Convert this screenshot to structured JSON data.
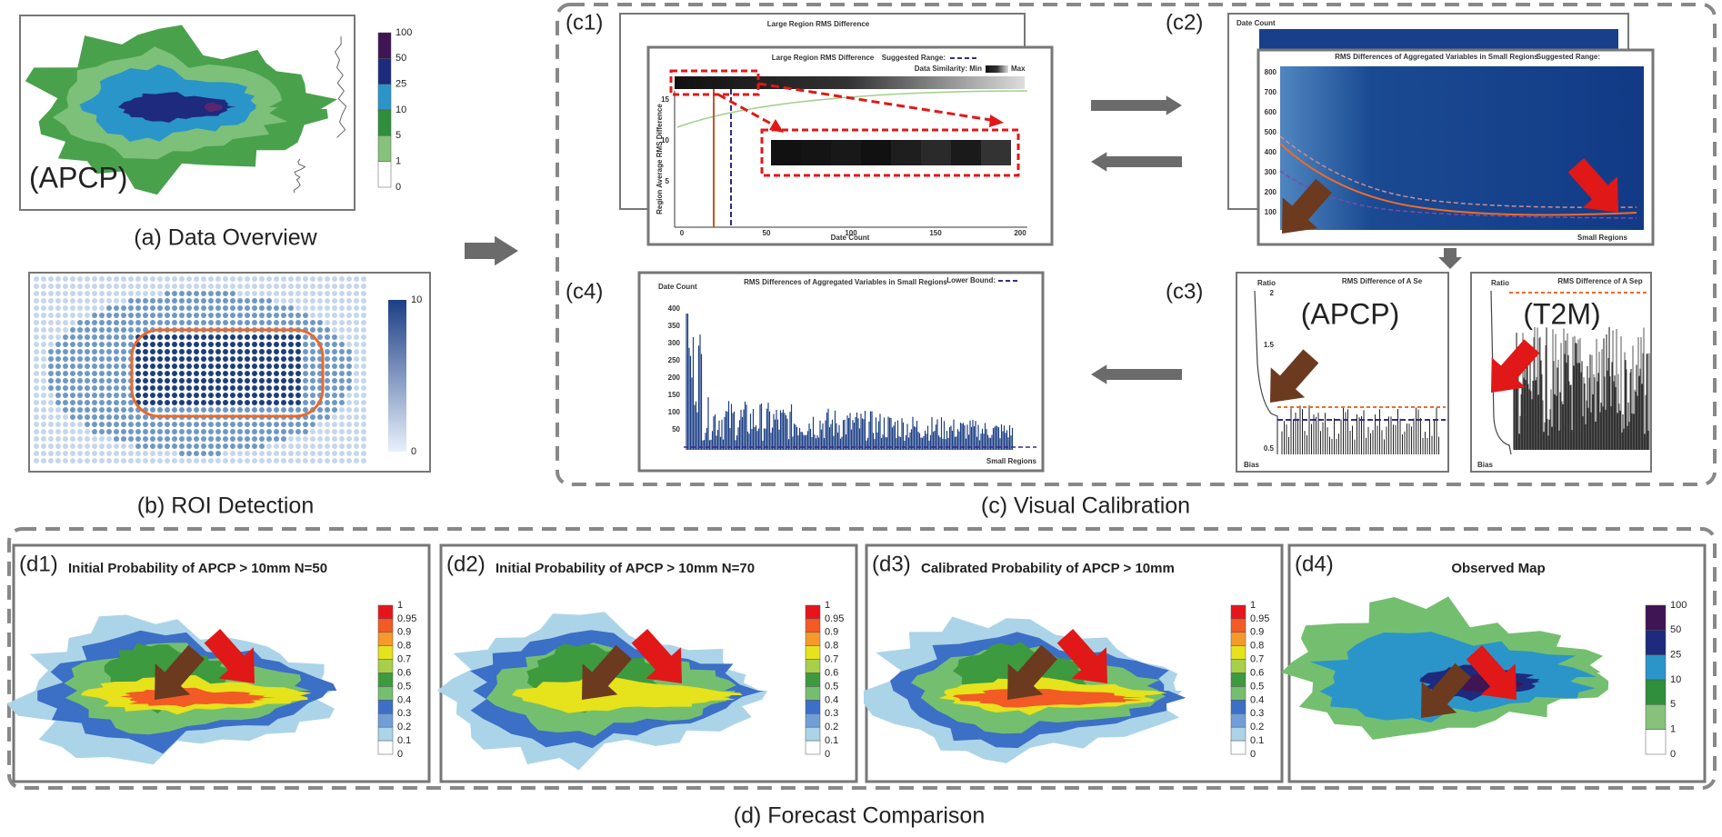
{
  "a": {
    "map_label": "(APCP)",
    "legend": [
      "100",
      "50",
      "25",
      "10",
      "5",
      "1",
      "0"
    ],
    "caption": "(a) Data Overview"
  },
  "b": {
    "legend": [
      "10",
      "0"
    ],
    "caption": "(b) ROI Detection"
  },
  "c": {
    "caption": "(c) Visual Calibration",
    "c1": {
      "tag": "(c1)",
      "title": "Large Region RMS Difference",
      "legend_range": "Suggested Range:",
      "legend_similarity": "Data Similarity: Min",
      "legend_max": "Max",
      "y_label": "Region Average RMS Difference",
      "x_label": "Date Count",
      "xticks": [
        "0",
        "50",
        "100",
        "150",
        "200"
      ],
      "yticks": [
        "15",
        "10",
        "5"
      ]
    },
    "c2": {
      "tag": "(c2)",
      "title": "RMS Differences of Aggregated Variables in Small Regions",
      "legend_range": "Suggested Range:",
      "y_label": "Date Count",
      "x_label": "Small Regions",
      "yticks": [
        "800",
        "700",
        "600",
        "500",
        "400",
        "300",
        "200",
        "100"
      ]
    },
    "c3": {
      "tag": "(c3)",
      "left": {
        "title": "RMS Difference of A Se",
        "label": "(APCP)",
        "y_label": "Ratio",
        "x_label": "Bias",
        "yticks": [
          "2",
          "1.5",
          "1",
          "0.5"
        ]
      },
      "right": {
        "title": "RMS Difference of A Sep",
        "label": "(T2M)",
        "y_label": "Ratio",
        "x_label": "Bias"
      }
    },
    "c4": {
      "tag": "(c4)",
      "title": "RMS Differences of Aggregated Variables in Small Regions",
      "legend": "Lower Bound:",
      "y_label": "Date Count",
      "x_label": "Small Regions",
      "yticks": [
        "400",
        "350",
        "300",
        "250",
        "200",
        "150",
        "100",
        "50"
      ]
    }
  },
  "d": {
    "caption": "(d) Forecast Comparison",
    "panels": [
      {
        "tag": "(d1)",
        "title": "Initial Probability of APCP > 10mm N=50"
      },
      {
        "tag": "(d2)",
        "title": "Initial Probability of APCP > 10mm N=70"
      },
      {
        "tag": "(d3)",
        "title": "Calibrated Probability of APCP > 10mm"
      },
      {
        "tag": "(d4)",
        "title": "Observed Map"
      }
    ],
    "prob_legend": [
      "1",
      "0.95",
      "0.9",
      "0.8",
      "0.7",
      "0.6",
      "0.5",
      "0.4",
      "0.3",
      "0.2",
      "0.1",
      "0"
    ],
    "obs_legend": [
      "100",
      "50",
      "25",
      "10",
      "5",
      "1",
      "0"
    ]
  }
}
